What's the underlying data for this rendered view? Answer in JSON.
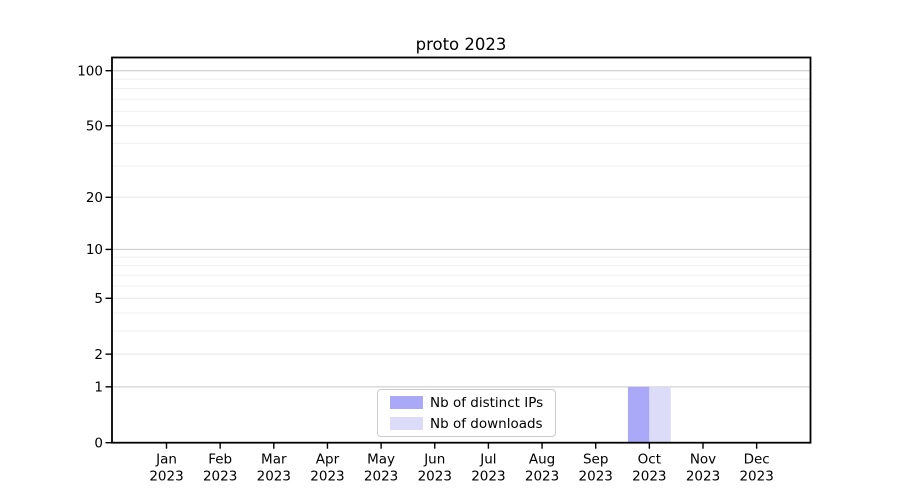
{
  "chart_data": {
    "type": "bar",
    "title": "proto 2023",
    "categories": [
      "Jan",
      "Feb",
      "Mar",
      "Apr",
      "May",
      "Jun",
      "Jul",
      "Aug",
      "Sep",
      "Oct",
      "Nov",
      "Dec"
    ],
    "categories_year_line": "2023",
    "series": [
      {
        "name": "Nb of distinct IPs",
        "color": "#a9a9f7",
        "values": [
          0,
          0,
          0,
          0,
          0,
          0,
          0,
          0,
          0,
          1,
          0,
          0
        ]
      },
      {
        "name": "Nb of downloads",
        "color": "#dcdcf9",
        "values": [
          0,
          0,
          0,
          0,
          0,
          0,
          0,
          0,
          0,
          1,
          0,
          0
        ]
      }
    ],
    "xlabel": "",
    "ylabel": "",
    "yscale": "log1p",
    "ylim": [
      0,
      118
    ],
    "yticks": [
      0,
      1,
      2,
      5,
      10,
      20,
      50,
      100
    ],
    "grid": "horizontal",
    "grid_values": {
      "major": [
        1,
        10,
        100
      ],
      "mid": [
        2,
        5,
        20,
        50
      ],
      "minor": [
        3,
        4,
        6,
        7,
        8,
        9,
        30,
        40,
        60,
        70,
        80,
        90
      ]
    },
    "legend_position": "lower center"
  },
  "colors": {
    "background": "#ffffff",
    "spine": "#000000",
    "grid_major": "#c6c6c6",
    "grid_mid": "#e7e7e7",
    "grid_minor": "#efefef",
    "legend_border": "#cccccc",
    "text": "#000000"
  }
}
